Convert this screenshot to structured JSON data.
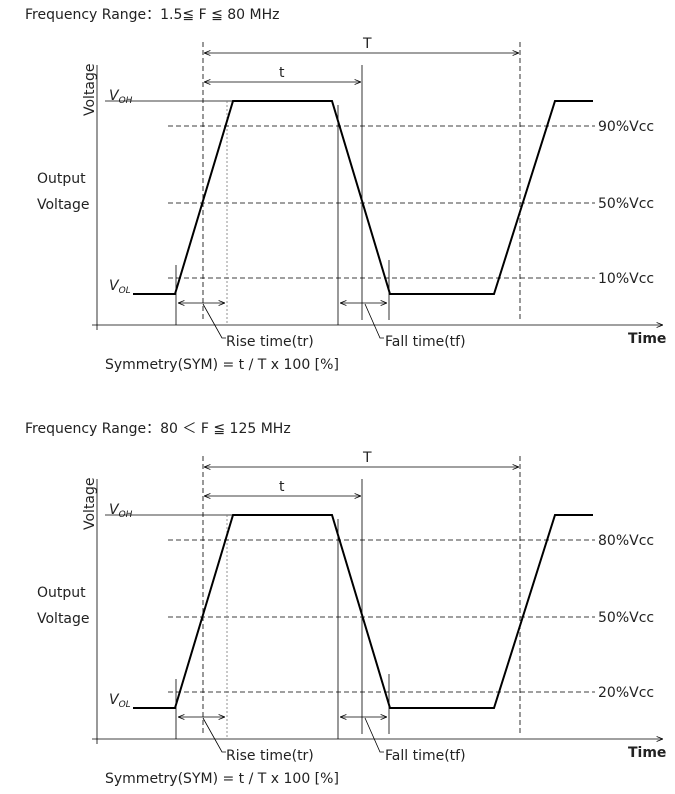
{
  "panels": [
    {
      "title": "Frequency Range：1.5≦ F ≦ 80 MHz",
      "period_label": "T",
      "high_time_label": "t",
      "y_axis_label": "Voltage",
      "voh": {
        "main": "V",
        "sub": "OH"
      },
      "vol": {
        "main": "V",
        "sub": "OL"
      },
      "output_label": [
        "Output",
        "Voltage"
      ],
      "levels": [
        "90%Vcc",
        "50%Vcc",
        "10%Vcc"
      ],
      "rise_label": "Rise time(tr)",
      "fall_label": "Fall time(tf)",
      "x_axis_label": "Time",
      "formula": "Symmetry(SYM) = t / T x 100 [%]"
    },
    {
      "title": "Frequency Range：80 ＜ F ≦ 125 MHz",
      "period_label": "T",
      "high_time_label": "t",
      "y_axis_label": "Voltage",
      "voh": {
        "main": "V",
        "sub": "OH"
      },
      "vol": {
        "main": "V",
        "sub": "OL"
      },
      "output_label": [
        "Output",
        "Voltage"
      ],
      "levels": [
        "80%Vcc",
        "50%Vcc",
        "20%Vcc"
      ],
      "rise_label": "Rise time(tr)",
      "fall_label": "Fall time(tf)",
      "x_axis_label": "Time",
      "formula": "Symmetry(SYM) = t / T x 100 [%]"
    }
  ]
}
